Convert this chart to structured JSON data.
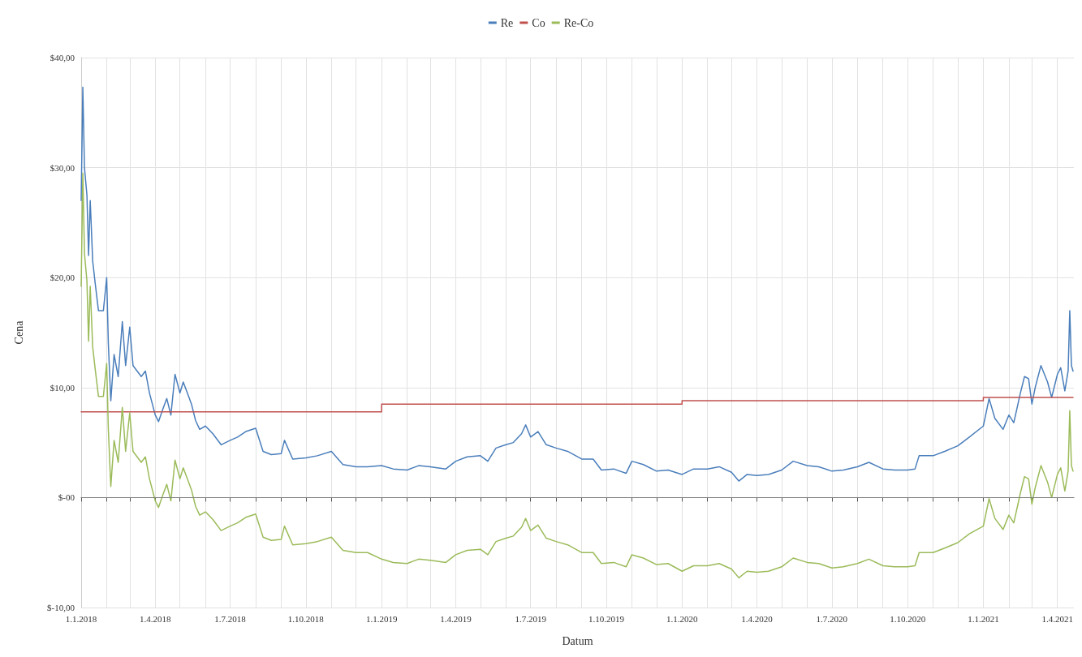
{
  "chart_data": {
    "type": "line",
    "xlabel": "Datum",
    "ylabel": "Cena",
    "legend": "top",
    "grid": true,
    "marker": "none",
    "line_style": "solid",
    "x": [
      "2018-01-01",
      "2018-01-03",
      "2018-01-05",
      "2018-01-08",
      "2018-01-10",
      "2018-01-12",
      "2018-01-15",
      "2018-01-18",
      "2018-01-22",
      "2018-01-28",
      "2018-02-01",
      "2018-02-03",
      "2018-02-06",
      "2018-02-10",
      "2018-02-15",
      "2018-02-20",
      "2018-02-24",
      "2018-03-01",
      "2018-03-05",
      "2018-03-10",
      "2018-03-15",
      "2018-03-20",
      "2018-03-25",
      "2018-04-01",
      "2018-04-05",
      "2018-04-10",
      "2018-04-15",
      "2018-04-20",
      "2018-04-25",
      "2018-05-01",
      "2018-05-05",
      "2018-05-10",
      "2018-05-15",
      "2018-05-20",
      "2018-05-25",
      "2018-06-01",
      "2018-06-10",
      "2018-06-20",
      "2018-07-01",
      "2018-07-10",
      "2018-07-20",
      "2018-08-01",
      "2018-08-10",
      "2018-08-20",
      "2018-09-01",
      "2018-09-05",
      "2018-09-15",
      "2018-10-01",
      "2018-10-15",
      "2018-11-01",
      "2018-11-15",
      "2018-12-01",
      "2018-12-15",
      "2019-01-01",
      "2019-01-15",
      "2019-02-01",
      "2019-02-15",
      "2019-03-01",
      "2019-03-20",
      "2019-04-01",
      "2019-04-15",
      "2019-05-01",
      "2019-05-10",
      "2019-05-20",
      "2019-06-01",
      "2019-06-10",
      "2019-06-20",
      "2019-06-25",
      "2019-07-01",
      "2019-07-10",
      "2019-07-20",
      "2019-08-01",
      "2019-08-15",
      "2019-09-01",
      "2019-09-15",
      "2019-09-25",
      "2019-10-10",
      "2019-10-25",
      "2019-11-01",
      "2019-11-15",
      "2019-12-01",
      "2019-12-15",
      "2020-01-01",
      "2020-01-15",
      "2020-02-01",
      "2020-02-15",
      "2020-03-01",
      "2020-03-10",
      "2020-03-20",
      "2020-04-01",
      "2020-04-15",
      "2020-05-01",
      "2020-05-15",
      "2020-06-01",
      "2020-06-15",
      "2020-07-01",
      "2020-07-15",
      "2020-08-01",
      "2020-08-15",
      "2020-09-01",
      "2020-09-15",
      "2020-10-01",
      "2020-10-10",
      "2020-10-15",
      "2020-11-01",
      "2020-11-15",
      "2020-12-01",
      "2020-12-15",
      "2021-01-01",
      "2021-01-08",
      "2021-01-15",
      "2021-01-25",
      "2021-02-01",
      "2021-02-07",
      "2021-02-15",
      "2021-02-20",
      "2021-02-25",
      "2021-03-01",
      "2021-03-05",
      "2021-03-12",
      "2021-03-20",
      "2021-03-25",
      "2021-04-01",
      "2021-04-05",
      "2021-04-10",
      "2021-04-14",
      "2021-04-16",
      "2021-04-18",
      "2021-04-20"
    ],
    "series": [
      {
        "name": "Re",
        "color": "#4a7ebb",
        "values": [
          27,
          37.3,
          30,
          27.5,
          22,
          27,
          21.5,
          19.5,
          17,
          17,
          20,
          14,
          8.8,
          13,
          11,
          16,
          12,
          15.5,
          12,
          11.5,
          11,
          11.5,
          9.5,
          7.5,
          6.9,
          8,
          9,
          7.5,
          11.2,
          9.5,
          10.5,
          9.5,
          8.5,
          7.0,
          6.2,
          6.5,
          5.8,
          4.8,
          5.2,
          5.5,
          6.0,
          6.3,
          4.2,
          3.9,
          4.0,
          5.2,
          3.5,
          3.6,
          3.8,
          4.2,
          3.0,
          2.8,
          2.8,
          2.9,
          2.6,
          2.5,
          2.9,
          2.8,
          2.6,
          3.3,
          3.7,
          3.8,
          3.3,
          4.5,
          4.8,
          5.0,
          5.8,
          6.6,
          5.5,
          6.0,
          4.8,
          4.5,
          4.2,
          3.5,
          3.5,
          2.5,
          2.6,
          2.2,
          3.3,
          3.0,
          2.4,
          2.5,
          2.1,
          2.6,
          2.6,
          2.8,
          2.3,
          1.5,
          2.1,
          2.0,
          2.1,
          2.5,
          3.3,
          2.9,
          2.8,
          2.4,
          2.5,
          2.8,
          3.2,
          2.6,
          2.5,
          2.5,
          2.6,
          3.8,
          3.8,
          4.2,
          4.7,
          5.5,
          6.5,
          9.0,
          7.2,
          6.2,
          7.5,
          6.8,
          9.5,
          11.0,
          10.8,
          8.5,
          10.0,
          12.0,
          10.5,
          9.1,
          11.2,
          11.8,
          9.7,
          11.5,
          17.0,
          12.0,
          11.5
        ]
      },
      {
        "name": "Co",
        "color": "#c0504d",
        "type": "step",
        "x": [
          "2018-01-01",
          "2019-01-01",
          "2020-01-01",
          "2021-01-01",
          "2021-04-20"
        ],
        "values": [
          7.8,
          8.5,
          8.8,
          9.1,
          9.1
        ]
      },
      {
        "name": "Re-Co",
        "color": "#9bbb59",
        "values": [
          19.2,
          29.5,
          22.2,
          19.7,
          14.2,
          19.2,
          13.7,
          11.7,
          9.2,
          9.2,
          12.2,
          6.2,
          1.0,
          5.2,
          3.2,
          8.2,
          4.2,
          7.7,
          4.2,
          3.7,
          3.2,
          3.7,
          1.7,
          -0.3,
          -0.9,
          0.2,
          1.2,
          -0.3,
          3.4,
          1.7,
          2.7,
          1.7,
          0.7,
          -0.8,
          -1.6,
          -1.3,
          -2.0,
          -3.0,
          -2.6,
          -2.3,
          -1.8,
          -1.5,
          -3.6,
          -3.9,
          -3.8,
          -2.6,
          -4.3,
          -4.2,
          -4.0,
          -3.6,
          -4.8,
          -5.0,
          -5.0,
          -5.6,
          -5.9,
          -6.0,
          -5.6,
          -5.7,
          -5.9,
          -5.2,
          -4.8,
          -4.7,
          -5.2,
          -4.0,
          -3.7,
          -3.5,
          -2.7,
          -1.9,
          -3.0,
          -2.5,
          -3.7,
          -4.0,
          -4.3,
          -5.0,
          -5.0,
          -6.0,
          -5.9,
          -6.3,
          -5.2,
          -5.5,
          -6.1,
          -6.0,
          -6.7,
          -6.2,
          -6.2,
          -6.0,
          -6.5,
          -7.3,
          -6.7,
          -6.8,
          -6.7,
          -6.3,
          -5.5,
          -5.9,
          -6.0,
          -6.4,
          -6.3,
          -6.0,
          -5.6,
          -6.2,
          -6.3,
          -6.3,
          -6.2,
          -5.0,
          -5.0,
          -4.6,
          -4.1,
          -3.3,
          -2.6,
          -0.1,
          -1.9,
          -2.9,
          -1.6,
          -2.3,
          0.4,
          1.9,
          1.7,
          -0.6,
          0.9,
          2.9,
          1.4,
          0.0,
          2.1,
          2.7,
          0.6,
          2.4,
          7.9,
          2.9,
          2.4
        ]
      }
    ],
    "ylim": [
      -10,
      40
    ],
    "yticks": [
      {
        "value": -10,
        "label": "$-10,00"
      },
      {
        "value": 0,
        "label": "$-00"
      },
      {
        "value": 10,
        "label": "$10,00"
      },
      {
        "value": 20,
        "label": "$20,00"
      },
      {
        "value": 30,
        "label": "$30,00"
      },
      {
        "value": 40,
        "label": "$40,00"
      }
    ],
    "xlim": [
      "2018-01-01",
      "2021-04-21"
    ],
    "xticks": [
      {
        "value": "2018-01-01",
        "label": "1.1.2018"
      },
      {
        "value": "2018-02-01",
        "label": null
      },
      {
        "value": "2018-03-01",
        "label": null
      },
      {
        "value": "2018-04-01",
        "label": "1.4.2018"
      },
      {
        "value": "2018-05-01",
        "label": null
      },
      {
        "value": "2018-06-01",
        "label": null
      },
      {
        "value": "2018-07-01",
        "label": "1.7.2018"
      },
      {
        "value": "2018-08-01",
        "label": null
      },
      {
        "value": "2018-09-01",
        "label": null
      },
      {
        "value": "2018-10-01",
        "label": "1.10.2018"
      },
      {
        "value": "2018-11-01",
        "label": null
      },
      {
        "value": "2018-12-01",
        "label": null
      },
      {
        "value": "2019-01-01",
        "label": "1.1.2019"
      },
      {
        "value": "2019-02-01",
        "label": null
      },
      {
        "value": "2019-03-01",
        "label": null
      },
      {
        "value": "2019-04-01",
        "label": "1.4.2019"
      },
      {
        "value": "2019-05-01",
        "label": null
      },
      {
        "value": "2019-06-01",
        "label": null
      },
      {
        "value": "2019-07-01",
        "label": "1.7.2019"
      },
      {
        "value": "2019-08-01",
        "label": null
      },
      {
        "value": "2019-09-01",
        "label": null
      },
      {
        "value": "2019-10-01",
        "label": "1.10.2019"
      },
      {
        "value": "2019-11-01",
        "label": null
      },
      {
        "value": "2019-12-01",
        "label": null
      },
      {
        "value": "2020-01-01",
        "label": "1.1.2020"
      },
      {
        "value": "2020-02-01",
        "label": null
      },
      {
        "value": "2020-03-01",
        "label": null
      },
      {
        "value": "2020-04-01",
        "label": "1.4.2020"
      },
      {
        "value": "2020-05-01",
        "label": null
      },
      {
        "value": "2020-06-01",
        "label": null
      },
      {
        "value": "2020-07-01",
        "label": "1.7.2020"
      },
      {
        "value": "2020-08-01",
        "label": null
      },
      {
        "value": "2020-09-01",
        "label": null
      },
      {
        "value": "2020-10-01",
        "label": "1.10.2020"
      },
      {
        "value": "2020-11-01",
        "label": null
      },
      {
        "value": "2020-12-01",
        "label": null
      },
      {
        "value": "2021-01-01",
        "label": "1.1.2021"
      },
      {
        "value": "2021-02-01",
        "label": null
      },
      {
        "value": "2021-03-01",
        "label": null
      },
      {
        "value": "2021-04-01",
        "label": "1.4.2021"
      }
    ],
    "ref_lines": [
      {
        "axis": "y",
        "value": 0,
        "color": "#808080"
      }
    ]
  }
}
